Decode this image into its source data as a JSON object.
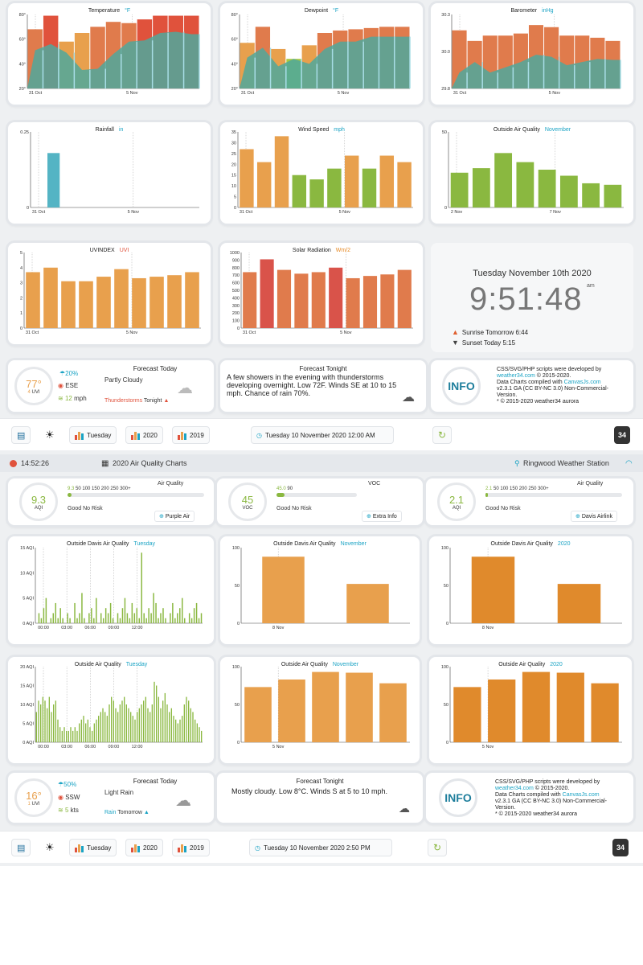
{
  "top": {
    "charts": {
      "temperature": {
        "title": "Temperature",
        "unit": "°F",
        "yticks": [
          "80°",
          "60°",
          "40°",
          "20°"
        ],
        "xticks": [
          "31 Oct",
          "5 Nov"
        ],
        "ymin": 20,
        "ymax": 80,
        "highs": [
          68,
          79,
          58,
          65,
          70,
          74,
          73,
          76,
          79,
          79,
          79
        ],
        "lows": [
          51,
          56,
          49,
          35,
          36,
          48,
          58,
          59,
          65,
          66,
          64
        ]
      },
      "dewpoint": {
        "title": "Dewpoint",
        "unit": "°F",
        "yticks": [
          "80°",
          "60°",
          "40°",
          "20°"
        ],
        "xticks": [
          "31 Oct",
          "5 Nov"
        ],
        "ymin": 20,
        "ymax": 80,
        "highs": [
          57,
          70,
          52,
          44,
          55,
          65,
          67,
          68,
          69,
          70,
          70
        ],
        "lows": [
          45,
          53,
          38,
          44,
          40,
          52,
          58,
          58,
          62,
          62,
          62
        ]
      },
      "barometer": {
        "title": "Barometer",
        "unit": "inHg",
        "yticks": [
          "30.3",
          "30.0",
          "29.8"
        ],
        "xticks": [
          "31 Oct",
          "5 Nov"
        ],
        "ymin": 29.8,
        "ymax": 30.5,
        "highs": [
          30.35,
          30.25,
          30.3,
          30.3,
          30.32,
          30.4,
          30.38,
          30.3,
          30.3,
          30.28,
          30.25
        ],
        "lows": [
          29.95,
          30.05,
          29.95,
          30.0,
          30.05,
          30.12,
          30.1,
          30.02,
          30.05,
          30.08,
          30.07
        ]
      },
      "rainfall": {
        "title": "Rainfall",
        "unit": "in",
        "yticks": [
          "0.25",
          "0"
        ],
        "xticks": [
          "31 Oct",
          "5 Nov"
        ],
        "ymax": 0.25,
        "values": [
          0,
          0.18,
          0,
          0,
          0,
          0,
          0,
          0,
          0,
          0,
          0
        ]
      },
      "wind": {
        "title": "Wind Speed",
        "unit": "mph",
        "yticks": [
          "35",
          "30",
          "25",
          "20",
          "15",
          "10",
          "5",
          "0"
        ],
        "xticks": [
          "31 Oct",
          "5 Nov"
        ],
        "ymax": 35,
        "values": [
          27,
          21,
          33,
          15,
          13,
          18,
          24,
          18,
          24,
          21
        ]
      },
      "airquality": {
        "title": "Outside Air Quality",
        "unit": "November",
        "yticks": [
          "50",
          "0"
        ],
        "xticks": [
          "2 Nov",
          "7 Nov"
        ],
        "ymax": 50,
        "values": [
          23,
          26,
          36,
          30,
          25,
          21,
          16,
          15
        ]
      },
      "uv": {
        "title": "UVINDEX",
        "unit": "UVI",
        "yticks": [
          "5",
          "4",
          "3",
          "2",
          "1",
          "0"
        ],
        "xticks": [
          "31 Oct",
          "5 Nov"
        ],
        "ymax": 5,
        "values": [
          3.7,
          4.0,
          3.1,
          3.1,
          3.4,
          3.9,
          3.3,
          3.4,
          3.5,
          3.7
        ]
      },
      "solar": {
        "title": "Solar Radiation",
        "unit": "Wm/2",
        "yticks": [
          "1000",
          "900",
          "800",
          "700",
          "600",
          "500",
          "400",
          "300",
          "200",
          "100",
          "0"
        ],
        "xticks": [
          "31 Oct",
          "5 Nov"
        ],
        "ymax": 1000,
        "values": [
          740,
          910,
          770,
          720,
          740,
          800,
          660,
          690,
          710,
          770
        ]
      }
    },
    "clock": {
      "date": "Tuesday November 10th 2020",
      "time": "9:51:48",
      "ampm": "am",
      "sunrise": "Sunrise Tomorrow 6:44",
      "sunset": "Sunset Today 5:15"
    },
    "forecast_today": {
      "title": "Forecast Today",
      "temp": "77°",
      "uvi": "4",
      "uvi_label": "UVI",
      "gust": "20%",
      "dir": "ESE",
      "speed": "12",
      "speed_unit": "mph",
      "summary": "Partly Cloudy",
      "warn": "Thunderstorms",
      "warn_suffix": "Tonight"
    },
    "forecast_tonight": {
      "title": "Forecast Tonight",
      "text": "A few showers in the evening with thunderstorms developing overnight. Low 72F. Winds SE at 10 to 15 mph. Chance of rain 70%."
    },
    "info": {
      "label": "INFO",
      "l1": "CSS/SVG/PHP scripts were developed by",
      "l2a": "weather34.com",
      "l2b": " © 2015-2020.",
      "l3a": "Data Charts compiled with ",
      "l3b": "CanvasJs.com",
      "l4": "v2.3.1 GA (CC BY-NC 3.0) Non-Commercial-",
      "l5": "Version.",
      "l6": "* © 2015-2020 weather34 aurora"
    },
    "toolbar": {
      "day": "Tuesday",
      "y1": "2020",
      "y2": "2019",
      "datetime": "Tuesday 10 November 2020 12:00 AM",
      "badge": "34"
    }
  },
  "header": {
    "time": "14:52:26",
    "title": "2020 Air Quality Charts",
    "station": "Ringwood Weather Station"
  },
  "aq": {
    "cards": [
      {
        "value": "9.3",
        "unit": "AQI",
        "scale_value": "9.3",
        "scale": "50 100 150 200 250 300+",
        "title": "Air Quality",
        "status": "Good No Risk",
        "link": "Purple Air",
        "fill": 0.03
      },
      {
        "value": "45",
        "unit": "VOC",
        "scale_value": "45.0",
        "scale": "90",
        "title": "VOC",
        "status": "Good No Risk",
        "link": "Extra Info",
        "fill": 0.1
      },
      {
        "value": "2.1",
        "unit": "AQI",
        "scale_value": "2.1",
        "scale": "50 100 150 200 250 300+",
        "title": "Air Quality",
        "status": "Good No Risk",
        "link": "Davis Airlink",
        "fill": 0.02
      }
    ],
    "charts": {
      "davis_day": {
        "title": "Outside Davis Air Quality",
        "unit": "Tuesday",
        "yticks": [
          "15 AQI",
          "10 AQI",
          "5 AQI",
          "0 AQI"
        ],
        "xticks": [
          "00:00",
          "03:00",
          "06:00",
          "09:00",
          "12:00"
        ],
        "ymax": 15,
        "values": [
          0,
          2,
          1,
          3,
          5,
          0,
          1,
          2,
          4,
          1,
          3,
          1,
          0,
          2,
          1,
          0,
          4,
          1,
          2,
          6,
          1,
          0,
          2,
          3,
          1,
          5,
          0,
          2,
          1,
          3,
          2,
          4,
          1,
          0,
          2,
          1,
          3,
          5,
          2,
          1,
          4,
          2,
          3,
          1,
          14,
          2,
          1,
          3,
          2,
          6,
          4,
          1,
          2,
          3,
          1,
          0,
          2,
          4,
          1,
          2,
          3,
          5,
          1,
          0,
          2,
          1,
          3,
          4,
          1,
          2
        ]
      },
      "davis_nov": {
        "title": "Outside Davis Air Quality",
        "unit": "November",
        "yticks": [
          "100",
          "50",
          "0"
        ],
        "xticks": [
          "8 Nov"
        ],
        "ymax": 100,
        "values": [
          88,
          52
        ]
      },
      "davis_2020": {
        "title": "Outside Davis Air Quality",
        "unit": "2020",
        "yticks": [
          "100",
          "50",
          "0"
        ],
        "xticks": [
          "8 Nov"
        ],
        "ymax": 100,
        "values": [
          88,
          52
        ]
      },
      "outside_day": {
        "title": "Outside Air Quality",
        "unit": "Tuesday",
        "yticks": [
          "20 AQI",
          "15 AQI",
          "10 AQI",
          "5 AQI",
          "0 AQI"
        ],
        "xticks": [
          "00:00",
          "03:00",
          "06:00",
          "09:00",
          "12:00"
        ],
        "ymax": 20,
        "values": [
          8,
          11,
          10,
          12,
          11,
          9,
          12,
          8,
          10,
          11,
          6,
          4,
          3,
          4,
          3,
          3,
          4,
          3,
          4,
          3,
          5,
          6,
          7,
          5,
          6,
          4,
          3,
          5,
          6,
          7,
          8,
          9,
          8,
          7,
          10,
          12,
          11,
          9,
          8,
          10,
          11,
          12,
          10,
          9,
          8,
          7,
          6,
          8,
          9,
          10,
          11,
          12,
          9,
          8,
          10,
          16,
          15,
          12,
          9,
          11,
          13,
          10,
          8,
          9,
          7,
          6,
          5,
          6,
          7,
          10,
          12,
          11,
          9,
          8,
          6,
          5,
          4,
          3
        ]
      },
      "outside_nov": {
        "title": "Outside Air Quality",
        "unit": "November",
        "yticks": [
          "100",
          "50",
          "0"
        ],
        "xticks": [
          "5 Nov"
        ],
        "ymax": 100,
        "values": [
          73,
          83,
          93,
          92,
          78
        ]
      },
      "outside_2020": {
        "title": "Outside Air Quality",
        "unit": "2020",
        "yticks": [
          "100",
          "50",
          "0"
        ],
        "xticks": [
          "5 Nov"
        ],
        "ymax": 100,
        "values": [
          73,
          83,
          93,
          92,
          78
        ]
      }
    },
    "forecast_today": {
      "title": "Forecast Today",
      "temp": "16°",
      "uvi": "1",
      "uvi_label": "UVI",
      "gust": "50%",
      "dir": "SSW",
      "speed": "5",
      "speed_unit": "kts",
      "summary": "Light Rain",
      "warn": "Rain",
      "warn_suffix": "Tomorrow"
    },
    "forecast_tonight": {
      "title": "Forecast Tonight",
      "text": "Mostly cloudy. Low 8°C. Winds S at 5 to 10 mph."
    },
    "info": {
      "label": "INFO",
      "l1": "CSS/SVG/PHP scripts were developed by",
      "l2a": "weather34.com",
      "l2b": " © 2015-2020.",
      "l3a": "Data Charts compiled with ",
      "l3b": "CanvasJs.com",
      "l4": "v2.3.1 GA (CC BY-NC 3.0) Non-Commercial-",
      "l5": "Version.",
      "l6": "* © 2015-2020 weather34 aurora"
    },
    "toolbar": {
      "day": "Tuesday",
      "y1": "2020",
      "y2": "2019",
      "datetime": "Tuesday 10 November 2020 2:50 PM",
      "badge": "34"
    }
  },
  "colors": {
    "orange": "#e8a04d",
    "red": "#e0523c",
    "teal": "#54b4c4",
    "green": "#8ab840",
    "accent": "#1aa3c4"
  }
}
